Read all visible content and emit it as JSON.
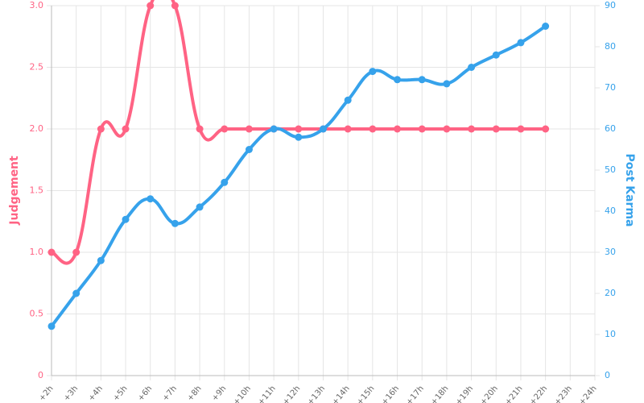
{
  "chart_data": {
    "type": "line",
    "categories": [
      "+2h",
      "+3h",
      "+4h",
      "+5h",
      "+6h",
      "+7h",
      "+8h",
      "+9h",
      "+10h",
      "+11h",
      "+12h",
      "+13h",
      "+14h",
      "+15h",
      "+16h",
      "+17h",
      "+18h",
      "+19h",
      "+20h",
      "+21h",
      "+22h",
      "+23h",
      "+24h"
    ],
    "series": [
      {
        "name": "Judgement",
        "color": "#ff6384",
        "axis": "y",
        "values": [
          1,
          1,
          2,
          2,
          3,
          3,
          2,
          2,
          2,
          2,
          2,
          2,
          2,
          2,
          2,
          2,
          2,
          2,
          2,
          2,
          2,
          null,
          null
        ]
      },
      {
        "name": "Post Karma",
        "color": "#36a2eb",
        "axis": "y2",
        "values": [
          12,
          20,
          28,
          38,
          43,
          37,
          41,
          47,
          55,
          60,
          58,
          60,
          67,
          74,
          72,
          72,
          71,
          75,
          78,
          81,
          85,
          null,
          null
        ]
      }
    ],
    "ylabel": "Judgement",
    "y2label": "Post Karma",
    "ylim": [
      0,
      3
    ],
    "yticks": [
      0,
      0.5,
      {
        "value": 1,
        "label": "1.0"
      },
      1.5,
      {
        "value": 2,
        "label": "2.0"
      },
      2.5,
      {
        "value": 3,
        "label": "3.0"
      }
    ],
    "y2lim": [
      0,
      90
    ],
    "y2ticks": [
      0,
      10,
      20,
      30,
      40,
      50,
      60,
      70,
      80,
      90
    ],
    "grid": true
  }
}
